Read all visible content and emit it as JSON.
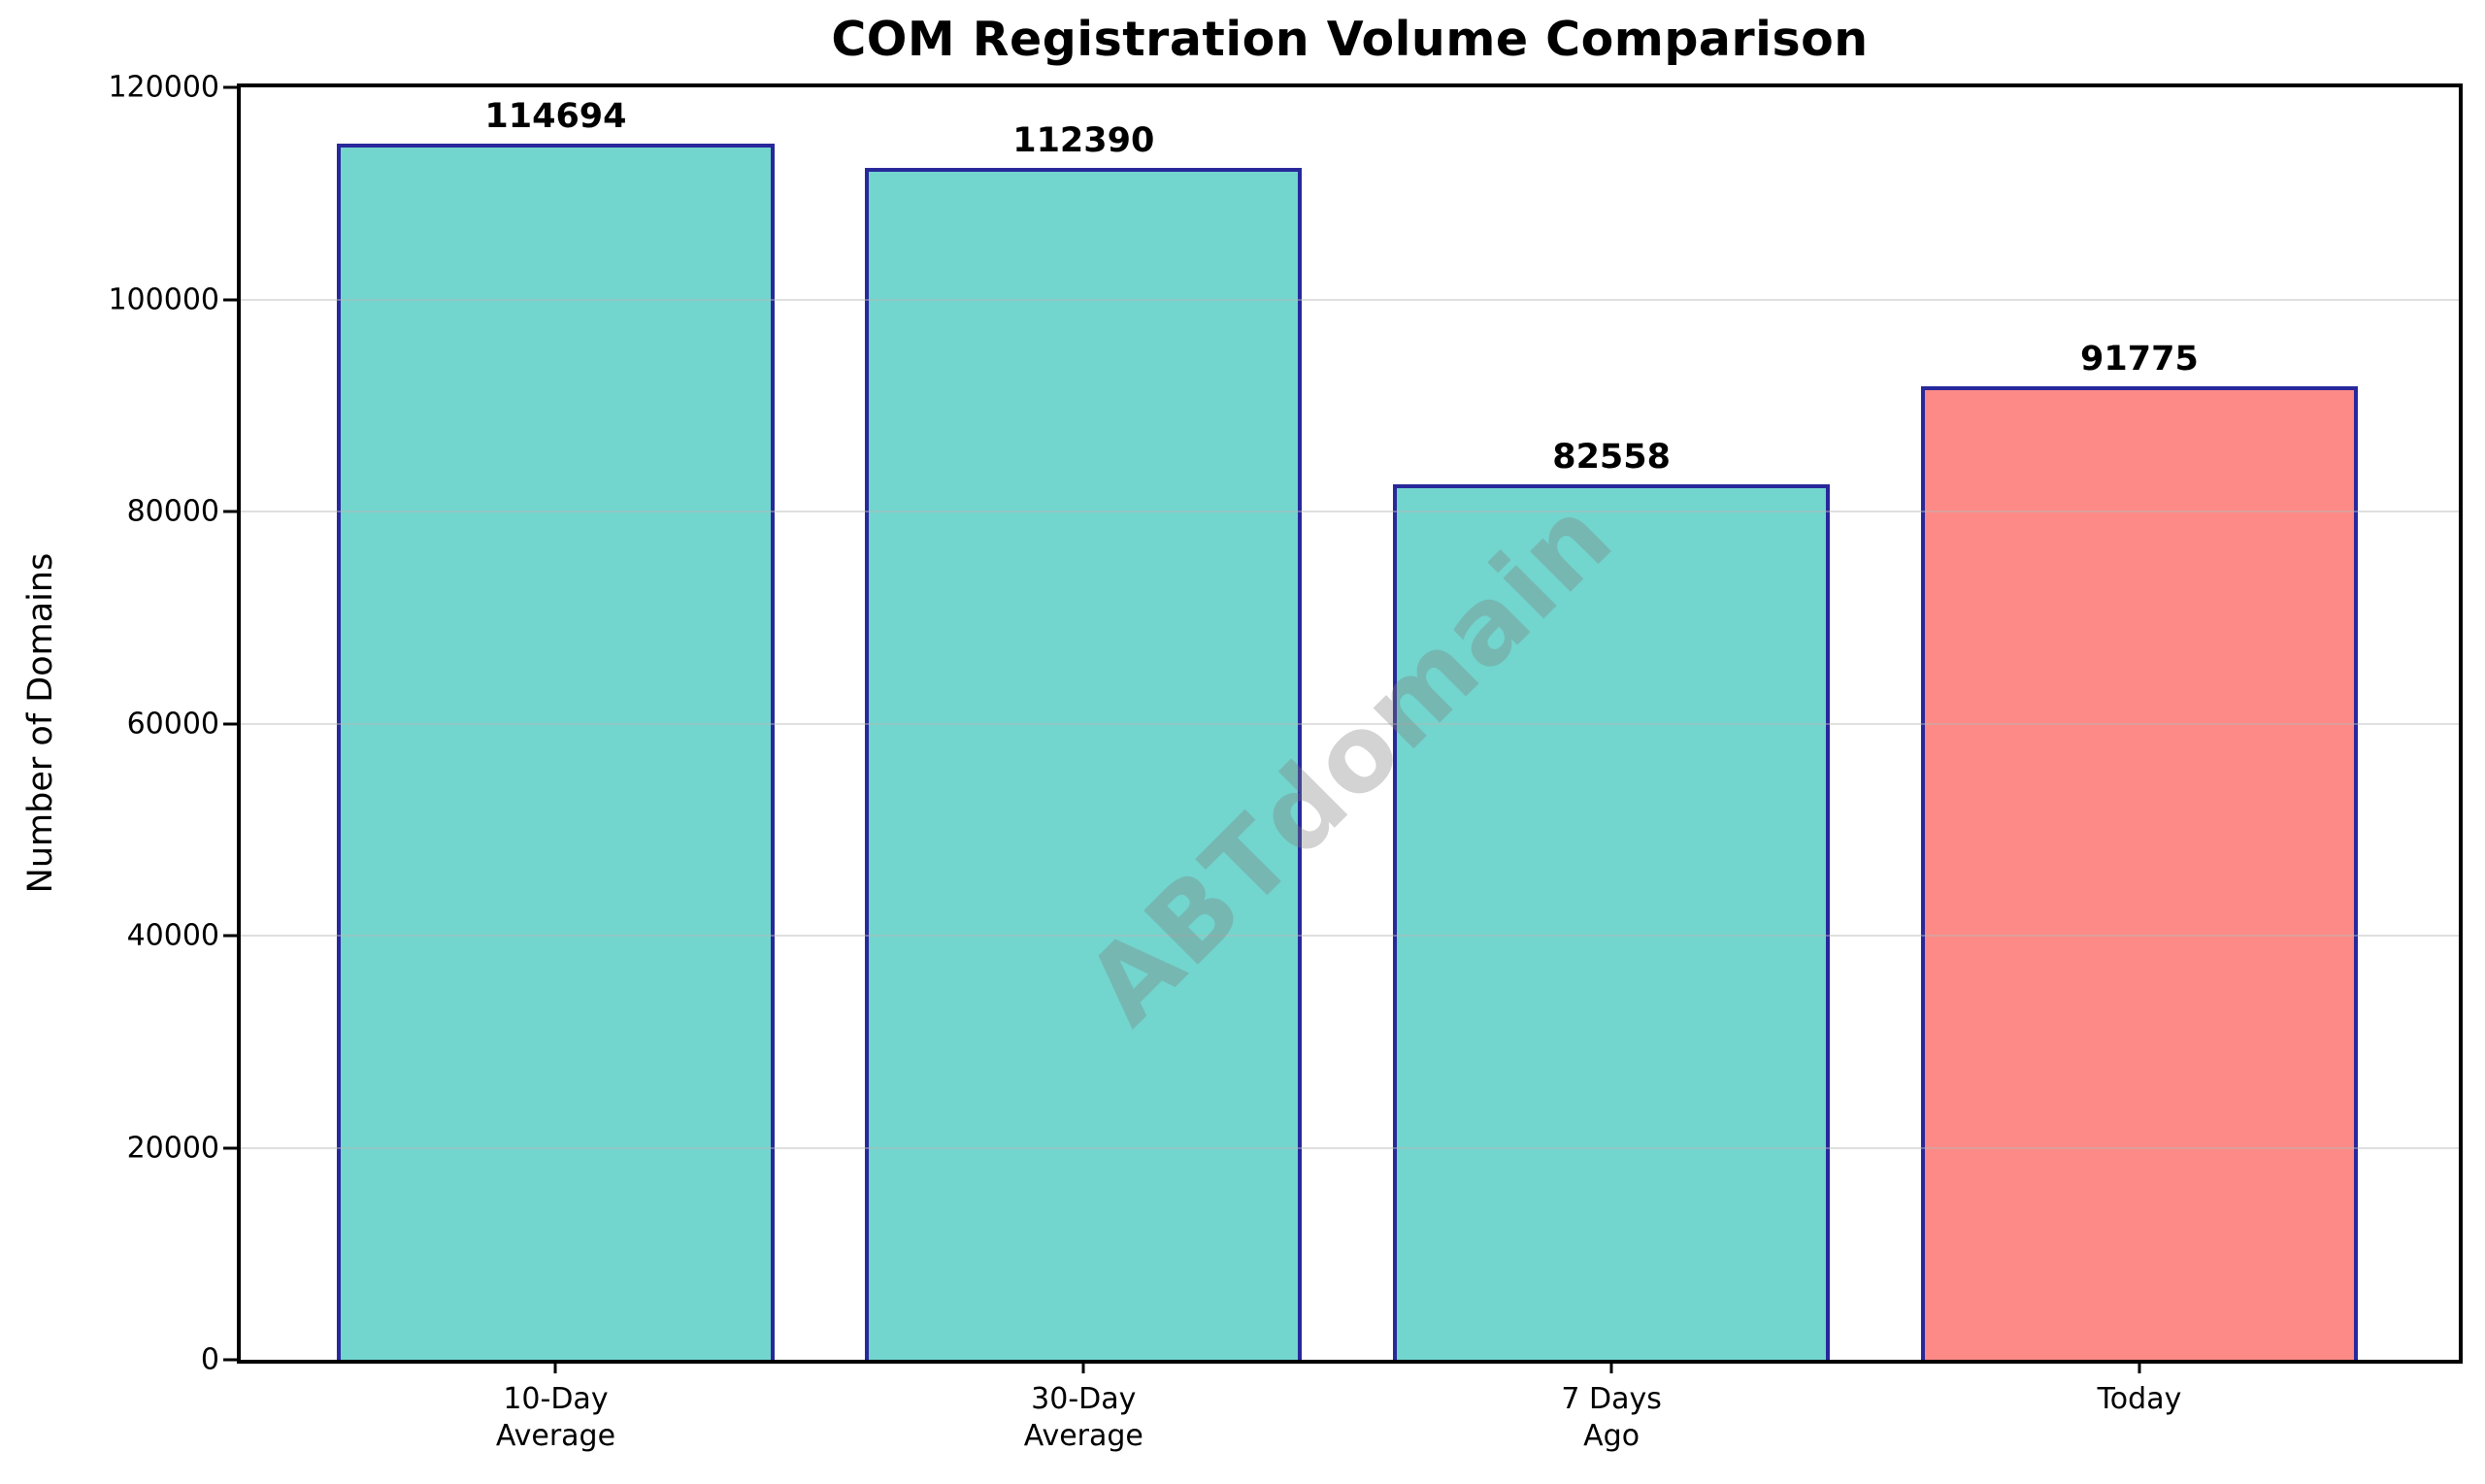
{
  "chart_data": {
    "type": "bar",
    "title": "COM Registration Volume Comparison",
    "ylabel": "Number of Domains",
    "xlabel": "",
    "categories": [
      "10-Day\nAverage",
      "30-Day\nAverage",
      "7 Days\nAgo",
      "Today"
    ],
    "values": [
      114694,
      112390,
      82558,
      91775
    ],
    "bar_colors": [
      "#72d5ce",
      "#72d5ce",
      "#72d5ce",
      "#fd8a86"
    ],
    "bar_edge_color": "#28289b",
    "ylim": [
      0,
      120000
    ],
    "yticks": [
      0,
      20000,
      40000,
      60000,
      80000,
      100000,
      120000
    ],
    "grid": "horizontal",
    "legend": "none",
    "watermark": "ABTdomain"
  },
  "colors": {
    "background": "#ffffff",
    "axis": "#000000",
    "grid_line": "#e0e0e0",
    "bar_teal": "#72d5ce",
    "bar_salmon": "#fd8a86",
    "bar_edge_navy": "#28289b",
    "watermark_gray": "#7f7f7f",
    "text": "#000000"
  }
}
